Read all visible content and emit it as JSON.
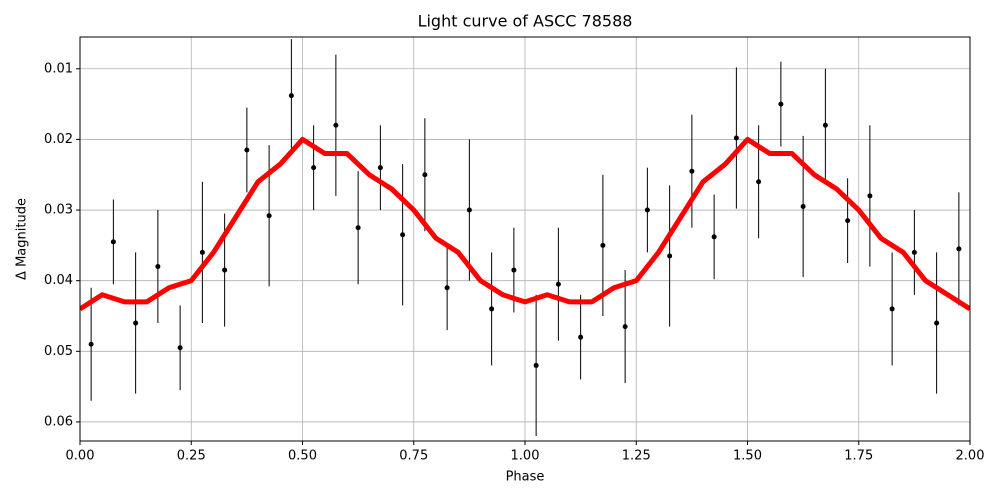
{
  "chart_data": {
    "type": "scatter",
    "title": "Light curve of ASCC 78588",
    "x_label": "Phase",
    "y_label": "Δ Magnitude",
    "xlim": [
      0,
      2
    ],
    "ylim": [
      0.0055,
      0.0627
    ],
    "invert_y": true,
    "grid": true,
    "xticks": [
      {
        "value": 0,
        "label": "0.00"
      },
      {
        "value": 0.25,
        "label": "0.25"
      },
      {
        "value": 0.5,
        "label": "0.50"
      },
      {
        "value": 0.75,
        "label": "0.75"
      },
      {
        "value": 1,
        "label": "1.00"
      },
      {
        "value": 1.25,
        "label": "1.25"
      },
      {
        "value": 1.5,
        "label": "1.50"
      },
      {
        "value": 1.75,
        "label": "1.75"
      },
      {
        "value": 2,
        "label": "2.00"
      }
    ],
    "yticks": [
      0.01,
      0.02,
      0.03,
      0.04,
      0.05,
      0.06
    ],
    "series": [
      {
        "type": "errorbar",
        "color": "#000000",
        "x": [
          0.025,
          0.075,
          0.125,
          0.175,
          0.225,
          0.275,
          0.325,
          0.375,
          0.425,
          0.475,
          0.525,
          0.575,
          0.625,
          0.675,
          0.725,
          0.775,
          0.825,
          0.875,
          0.925,
          0.975,
          1.025,
          1.075,
          1.125,
          1.175,
          1.225,
          1.275,
          1.325,
          1.375,
          1.425,
          1.475,
          1.525,
          1.575,
          1.625,
          1.675,
          1.725,
          1.775,
          1.825,
          1.875,
          1.925,
          1.975
        ],
        "values": [
          0.049,
          0.0345,
          0.046,
          0.038,
          0.0495,
          0.036,
          0.0385,
          0.0215,
          0.0308,
          0.0138,
          0.024,
          0.018,
          0.0325,
          0.024,
          0.0335,
          0.025,
          0.041,
          0.03,
          0.044,
          0.0385,
          0.052,
          0.0405,
          0.048,
          0.035,
          0.0465,
          0.03,
          0.0365,
          0.0245,
          0.0338,
          0.0198,
          0.026,
          0.015,
          0.0295,
          0.018,
          0.0315,
          0.028,
          0.044,
          0.036,
          0.046,
          0.0355
        ],
        "errors": [
          0.008,
          0.006,
          0.01,
          0.008,
          0.006,
          0.01,
          0.008,
          0.006,
          0.01,
          0.008,
          0.006,
          0.01,
          0.008,
          0.006,
          0.01,
          0.008,
          0.006,
          0.01,
          0.008,
          0.006,
          0.01,
          0.008,
          0.006,
          0.01,
          0.008,
          0.006,
          0.01,
          0.008,
          0.006,
          0.01,
          0.008,
          0.006,
          0.01,
          0.008,
          0.006,
          0.01,
          0.008,
          0.006,
          0.01,
          0.008
        ]
      },
      {
        "type": "line",
        "color": "#ff0000",
        "x": [
          0,
          0.05,
          0.1,
          0.15,
          0.2,
          0.25,
          0.3,
          0.35,
          0.4,
          0.45,
          0.5,
          0.55,
          0.6,
          0.65,
          0.7,
          0.75,
          0.8,
          0.85,
          0.9,
          0.95,
          1,
          1.05,
          1.1,
          1.15,
          1.2,
          1.25,
          1.3,
          1.35,
          1.4,
          1.45,
          1.5,
          1.55,
          1.6,
          1.65,
          1.7,
          1.75,
          1.8,
          1.85,
          1.9,
          1.95,
          2
        ],
        "values": [
          0.044,
          0.042,
          0.043,
          0.043,
          0.041,
          0.04,
          0.036,
          0.031,
          0.026,
          0.0235,
          0.02,
          0.022,
          0.022,
          0.025,
          0.027,
          0.03,
          0.034,
          0.036,
          0.04,
          0.042,
          0.043,
          0.042,
          0.043,
          0.043,
          0.041,
          0.04,
          0.036,
          0.031,
          0.026,
          0.0235,
          0.02,
          0.022,
          0.022,
          0.025,
          0.027,
          0.03,
          0.034,
          0.036,
          0.04,
          0.042,
          0.044
        ]
      }
    ]
  }
}
